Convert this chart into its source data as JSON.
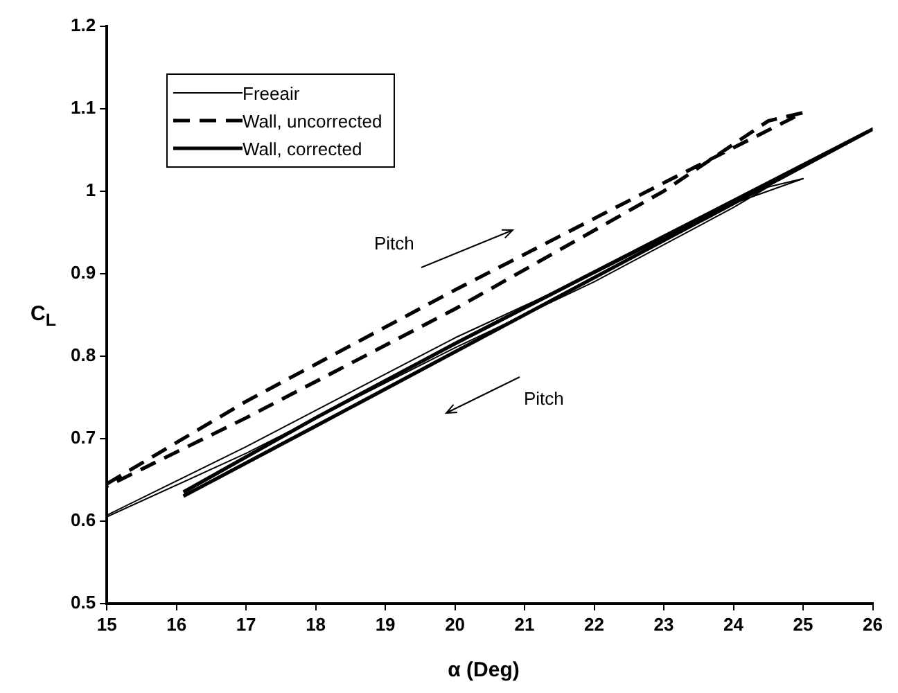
{
  "chart_data": {
    "type": "line",
    "xlabel": "α (Deg)",
    "ylabel": "C$_{L}$",
    "xlim": [
      15,
      26
    ],
    "ylim": [
      0.5,
      1.2
    ],
    "xticks": [
      15,
      16,
      17,
      18,
      19,
      20,
      21,
      22,
      23,
      24,
      25,
      26
    ],
    "yticks": [
      0.5,
      0.6,
      0.7,
      0.8,
      0.9,
      1,
      1.1,
      1.2
    ],
    "grid": false,
    "legend": "top left",
    "marker": "none",
    "annotations": [
      "Pitch",
      "Pitch"
    ],
    "series": [
      {
        "name": "Freeair",
        "color": "#000000",
        "line_style": "solid",
        "x": [
          15,
          17,
          20,
          22,
          24,
          25,
          24.5,
          24,
          22,
          20,
          17,
          15
        ],
        "values": [
          0.607,
          0.69,
          0.822,
          0.9,
          0.985,
          1.015,
          1.005,
          0.98,
          0.89,
          0.81,
          0.682,
          0.605
        ]
      },
      {
        "name": "Wall, uncorrected",
        "color": "#000000",
        "line_style": "dashed",
        "x": [
          15,
          17,
          20,
          23,
          25,
          24.5,
          23,
          20,
          17,
          15
        ],
        "values": [
          0.645,
          0.745,
          0.88,
          1.01,
          1.095,
          1.085,
          1.0,
          0.857,
          0.725,
          0.642
        ]
      },
      {
        "name": "Wall, corrected",
        "color": "#000000",
        "line_style": "solid",
        "x": [
          16.1,
          18,
          20,
          23,
          26,
          25,
          23,
          21,
          18,
          16.1
        ],
        "values": [
          0.635,
          0.725,
          0.815,
          0.945,
          1.075,
          1.03,
          0.94,
          0.85,
          0.715,
          0.63
        ]
      }
    ]
  }
}
